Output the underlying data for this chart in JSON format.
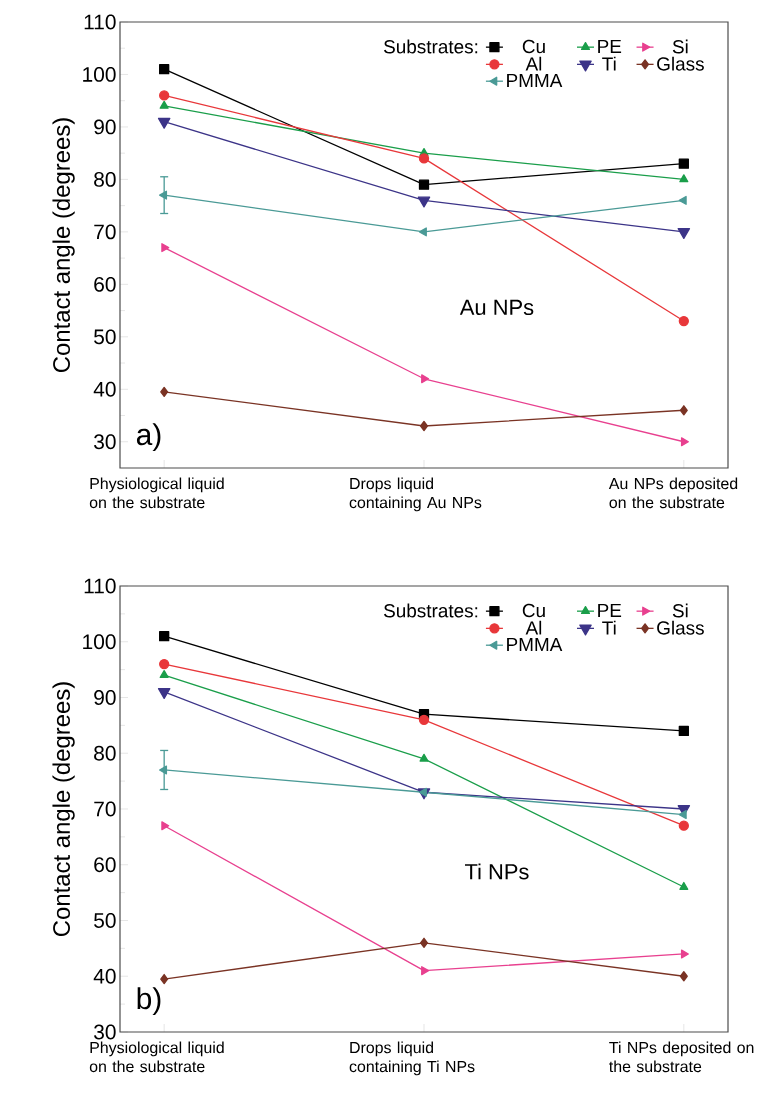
{
  "chart_data": [
    {
      "type": "line",
      "categories": [
        "Physiological liquid on the substrate",
        "Drops liquid containing Au NPs",
        "Au NPs deposited on the substrate"
      ],
      "ylabel": "Contact angle (degrees)",
      "ylim": [
        25,
        110
      ],
      "yticks": [
        30,
        40,
        50,
        60,
        70,
        80,
        90,
        100,
        110
      ],
      "legend": "top",
      "legend_title": "Substrates:",
      "annotations": [
        "a)",
        "Au NPs"
      ],
      "series": [
        {
          "name": "Cu",
          "color": "#000000",
          "marker": "square",
          "values": [
            101,
            79,
            83
          ]
        },
        {
          "name": "PE",
          "color": "#1a9e4a",
          "marker": "triangle",
          "values": [
            94,
            85,
            80
          ]
        },
        {
          "name": "Si",
          "color": "#e8408f",
          "marker": "triangle right",
          "values": [
            67,
            42,
            30
          ]
        },
        {
          "name": "Al",
          "color": "#e8373a",
          "marker": "circle",
          "values": [
            96,
            84,
            53
          ]
        },
        {
          "name": "Ti",
          "color": "#3c3488",
          "marker": "triangle down",
          "values": [
            91,
            76,
            70
          ]
        },
        {
          "name": "Glass",
          "color": "#7a3324",
          "marker": "diamond",
          "values": [
            39.5,
            33,
            36
          ]
        },
        {
          "name": "PMMA",
          "color": "#4a9a96",
          "marker": "triangle left",
          "values": [
            77,
            70,
            76
          ],
          "errors": [
            3.5,
            null,
            null
          ]
        }
      ]
    },
    {
      "type": "line",
      "categories": [
        "Physiological liquid on the substrate",
        "Drops liquid containing Ti NPs",
        "Ti NPs deposited on the substrate"
      ],
      "ylabel": "Contact angle (degrees)",
      "ylim": [
        30,
        110
      ],
      "yticks": [
        30,
        40,
        50,
        60,
        70,
        80,
        90,
        100,
        110
      ],
      "legend": "top",
      "legend_title": "Substrates:",
      "annotations": [
        "b)",
        "Ti NPs"
      ],
      "series": [
        {
          "name": "Cu",
          "color": "#000000",
          "marker": "square",
          "values": [
            101,
            87,
            84
          ]
        },
        {
          "name": "PE",
          "color": "#1a9e4a",
          "marker": "triangle",
          "values": [
            94,
            79,
            56
          ]
        },
        {
          "name": "Si",
          "color": "#e8408f",
          "marker": "triangle right",
          "values": [
            67,
            41,
            44
          ]
        },
        {
          "name": "Al",
          "color": "#e8373a",
          "marker": "circle",
          "values": [
            96,
            86,
            67
          ]
        },
        {
          "name": "Ti",
          "color": "#3c3488",
          "marker": "triangle down",
          "values": [
            91,
            73,
            70
          ]
        },
        {
          "name": "Glass",
          "color": "#7a3324",
          "marker": "diamond",
          "values": [
            39.5,
            46,
            40
          ]
        },
        {
          "name": "PMMA",
          "color": "#4a9a96",
          "marker": "triangle left",
          "values": [
            77,
            73,
            69
          ],
          "errors": [
            3.5,
            null,
            null
          ]
        }
      ]
    }
  ]
}
